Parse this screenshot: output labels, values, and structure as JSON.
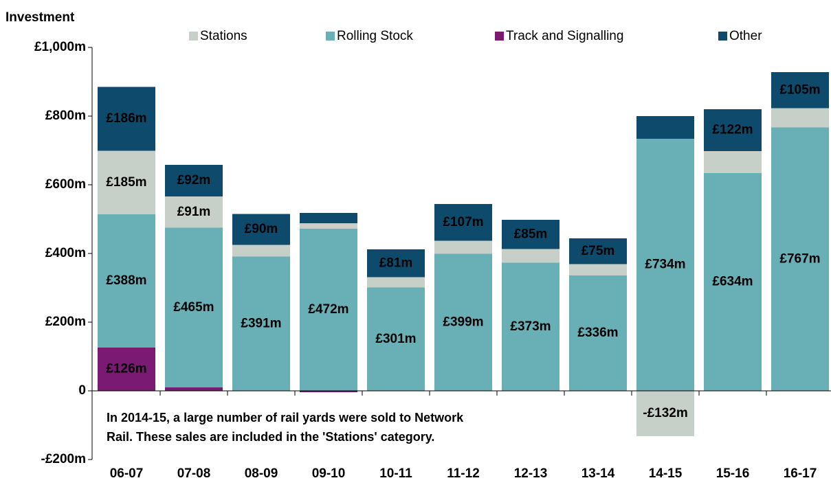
{
  "chart_data": {
    "type": "stacked_bar",
    "y_axis_title": "Investment",
    "annotation": [
      "In 2014-15, a large number of rail yards were sold to Network",
      "Rail. These sales are included in the 'Stations' category."
    ],
    "categories": [
      "06-07",
      "07-08",
      "08-09",
      "09-10",
      "10-11",
      "11-12",
      "12-13",
      "13-14",
      "14-15",
      "15-16",
      "16-17"
    ],
    "series": [
      {
        "name": "Stations",
        "color": "#c6d0c9",
        "values": [
          185,
          91,
          34,
          16,
          30,
          38,
          40,
          33,
          -132,
          64,
          56
        ],
        "value_labels": [
          "£185m",
          "£91m",
          null,
          null,
          null,
          null,
          null,
          null,
          "-£132m",
          null,
          null
        ]
      },
      {
        "name": "Rolling Stock",
        "color": "#68b0b6",
        "values": [
          388,
          465,
          391,
          472,
          301,
          399,
          373,
          336,
          734,
          634,
          767
        ],
        "value_labels": [
          "£388m",
          "£465m",
          "£391m",
          "£472m",
          "£301m",
          "£399m",
          "£373m",
          "£336m",
          "£734m",
          "£634m",
          "£767m"
        ]
      },
      {
        "name": "Track and Signalling",
        "color": "#7a1a72",
        "values": [
          126,
          10,
          0,
          -4,
          0,
          0,
          0,
          0,
          0,
          0,
          0
        ],
        "value_labels": [
          "£126m",
          null,
          null,
          null,
          null,
          null,
          null,
          null,
          null,
          null,
          null
        ]
      },
      {
        "name": "Other",
        "color": "#0e4a6b",
        "values": [
          186,
          92,
          90,
          30,
          81,
          107,
          85,
          75,
          66,
          122,
          105
        ],
        "value_labels": [
          "£186m",
          "£92m",
          "£90m",
          null,
          "£81m",
          "£107m",
          "£85m",
          "£75m",
          null,
          "£122m",
          "£105m"
        ]
      }
    ],
    "ylim": [
      -200,
      1000
    ],
    "yticks": [
      {
        "value": -200,
        "label": "-£200m"
      },
      0,
      {
        "value": 200,
        "label": "£200m"
      },
      {
        "value": 400,
        "label": "£400m"
      },
      {
        "value": 600,
        "label": "£600m"
      },
      {
        "value": 800,
        "label": "£800m"
      },
      {
        "value": 1000,
        "label": "£1,000m"
      }
    ],
    "grid": false,
    "legend": "top"
  }
}
